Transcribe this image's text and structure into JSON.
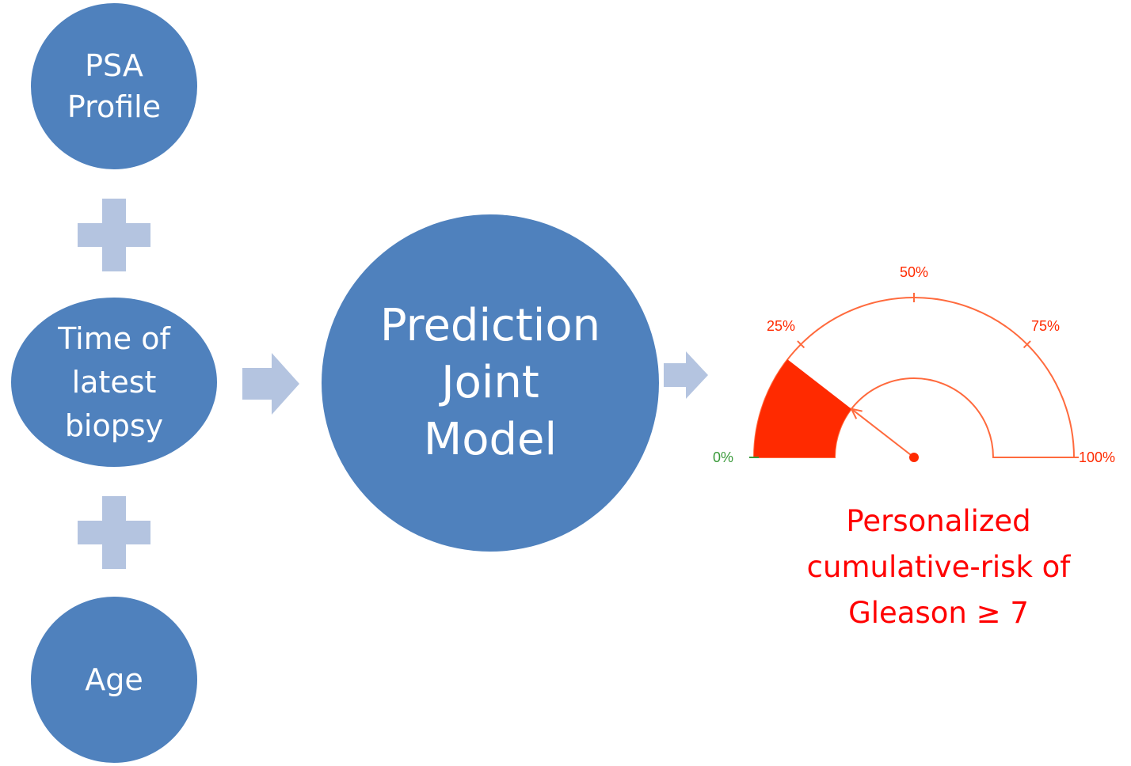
{
  "inputs": {
    "psa": "PSA\nProfile",
    "time_of_biopsy": "Time of\nlatest\nbiopsy",
    "age": "Age"
  },
  "model": {
    "label": "Prediction\nJoint\nModel"
  },
  "gauge": {
    "value_percent": 21,
    "ticks": {
      "t0": "0%",
      "t25": "25%",
      "t50": "50%",
      "t75": "75%",
      "t100": "100%"
    }
  },
  "output": {
    "line1": "Personalized",
    "line2": "cumulative-risk of",
    "line3": "Gleason ≥ 7"
  },
  "colors": {
    "node_fill": "#4f81bd",
    "connector_fill": "#b4c4e0",
    "gauge_stroke": "#ff6a3d",
    "gauge_fill": "#ff2a00",
    "zero_label": "#3a9a3a",
    "caption": "#ff0000"
  },
  "icons": {
    "plus": "plus-icon",
    "arrow": "arrow-right-icon"
  }
}
